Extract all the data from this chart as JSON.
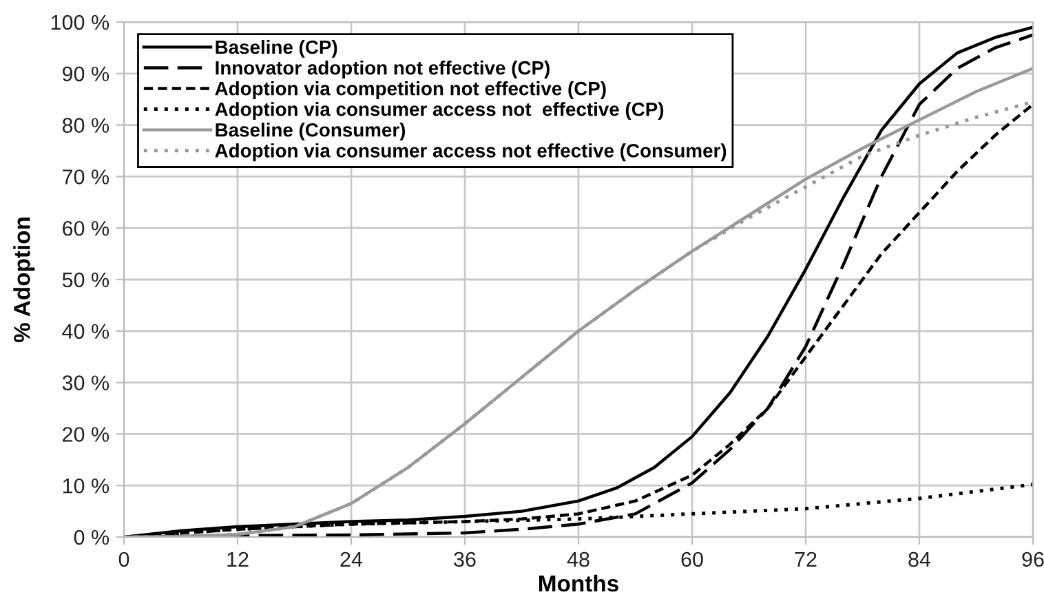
{
  "chart_data": {
    "type": "line",
    "xlabel": "Months",
    "ylabel": "% Adoption",
    "xlim": [
      0,
      96
    ],
    "xticks": [
      0,
      12,
      24,
      36,
      48,
      60,
      72,
      84,
      96
    ],
    "ylim": [
      0,
      100
    ],
    "yticks": [
      {
        "value": 0,
        "label": "0 %"
      },
      {
        "value": 10,
        "label": "10 %"
      },
      {
        "value": 20,
        "label": "20 %"
      },
      {
        "value": 30,
        "label": "30 %"
      },
      {
        "value": 40,
        "label": "40 %"
      },
      {
        "value": 50,
        "label": "50 %"
      },
      {
        "value": 60,
        "label": "60 %"
      },
      {
        "value": 70,
        "label": "70 %"
      },
      {
        "value": 80,
        "label": "80 %"
      },
      {
        "value": 90,
        "label": "90 %"
      },
      {
        "value": 100,
        "label": "100 %"
      }
    ],
    "grid": true,
    "legend": "top left",
    "marker": "none",
    "series": [
      {
        "name": "Baseline (CP)",
        "color": "#000000",
        "line_style": "solid",
        "x": [
          0,
          6,
          12,
          18,
          24,
          30,
          36,
          42,
          48,
          52,
          56,
          60,
          64,
          68,
          72,
          76,
          80,
          84,
          88,
          92,
          96
        ],
        "values": [
          0,
          1.2,
          2,
          2.5,
          3,
          3.3,
          4,
          5,
          7,
          9.5,
          13.5,
          19.5,
          28,
          39,
          52,
          66,
          79,
          88,
          94,
          97,
          99
        ]
      },
      {
        "name": "Innovator adoption not effective (CP)",
        "color": "#000000",
        "line_style": "longdash",
        "x": [
          0,
          12,
          24,
          36,
          42,
          48,
          54,
          60,
          64,
          68,
          72,
          76,
          80,
          84,
          88,
          92,
          96
        ],
        "values": [
          0,
          0.3,
          0.4,
          0.8,
          1.5,
          2.5,
          4.5,
          10.5,
          17,
          25,
          37,
          53,
          70,
          84,
          91,
          95,
          97.5
        ]
      },
      {
        "name": "Adoption via competition not effective (CP)",
        "color": "#000000",
        "line_style": "dashed",
        "x": [
          0,
          12,
          24,
          36,
          42,
          48,
          54,
          60,
          64,
          68,
          72,
          76,
          80,
          84,
          88,
          92,
          96
        ],
        "values": [
          0,
          1.5,
          2.5,
          3,
          3.5,
          4.5,
          7,
          12,
          18,
          25,
          35,
          45,
          55,
          63,
          71,
          78,
          84
        ]
      },
      {
        "name": "Adoption via consumer access not  effective (CP)",
        "color": "#000000",
        "line_style": "dotted",
        "x": [
          0,
          12,
          24,
          36,
          48,
          60,
          72,
          84,
          96
        ],
        "values": [
          0,
          1.5,
          2.5,
          3,
          3.5,
          4.5,
          5.5,
          7.5,
          10.2
        ]
      },
      {
        "name": "Baseline (Consumer)",
        "color": "#999999",
        "line_style": "solid",
        "x": [
          0,
          6,
          12,
          18,
          24,
          30,
          36,
          42,
          48,
          54,
          60,
          66,
          72,
          78,
          84,
          90,
          96
        ],
        "values": [
          0,
          0.1,
          0.5,
          2,
          6.5,
          13.5,
          22,
          31,
          40,
          48,
          55.5,
          62.5,
          69.5,
          75.5,
          81,
          86.5,
          91
        ]
      },
      {
        "name": "Adoption via consumer access not effective (Consumer)",
        "color": "#999999",
        "line_style": "dotted",
        "x": [
          0,
          6,
          12,
          18,
          24,
          30,
          36,
          42,
          48,
          54,
          60,
          66,
          72,
          78,
          84,
          90,
          96
        ],
        "values": [
          0,
          0.1,
          0.5,
          2,
          6.5,
          13.5,
          22,
          31,
          40,
          48,
          55.5,
          62,
          68,
          74,
          78,
          81.5,
          84.5
        ]
      }
    ]
  }
}
